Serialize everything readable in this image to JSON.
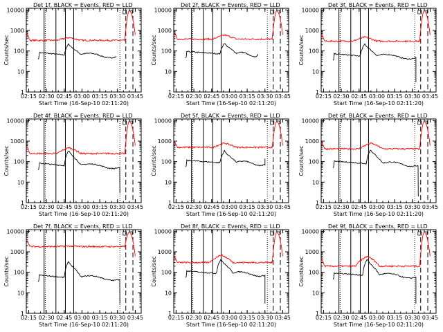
{
  "common": {
    "xlabel": "Start Time (16-Sep-10 02:11:20)",
    "ylabel": "Counts/sec",
    "x_ticks": [
      "02:15",
      "02:30",
      "02:45",
      "03:00",
      "03:15",
      "03:30",
      "03:45"
    ],
    "y_ticks": [
      "1",
      "10",
      "100",
      "1000",
      "10000"
    ],
    "y_scale": "log",
    "ylim": [
      1,
      10000
    ],
    "series_colors": {
      "events": "#000000",
      "lld": "#ff0000"
    },
    "solid_markers": [
      "02:28",
      "02:38",
      "02:46",
      "02:53"
    ],
    "dotted_markers": [
      "02:29",
      "03:32"
    ],
    "dashed_markers": [
      "03:37",
      "03:43"
    ]
  },
  "chart_data": [
    {
      "type": "line",
      "title": "Det 1f, BLACK = Events, RED = LLD",
      "events": {
        "start": "02:23",
        "base": 80,
        "peak_at": "02:49",
        "peak": 230,
        "end": "03:29",
        "end_value": 55
      },
      "lld": {
        "base": 330,
        "peak": 450,
        "flare_max": 9000
      }
    },
    {
      "type": "line",
      "title": "Det 2f, BLACK = Events, RED = LLD",
      "events": {
        "start": "02:23",
        "base": 90,
        "peak_at": "02:56",
        "peak": 250,
        "end": "03:24",
        "end_value": 70
      },
      "lld": {
        "base": 380,
        "peak": 600,
        "flare_max": 9000
      }
    },
    {
      "type": "line",
      "title": "Det 3f, BLACK = Events, RED = LLD",
      "events": {
        "start": "02:23",
        "base": 70,
        "peak_at": "02:50",
        "peak": 230,
        "end": "03:33",
        "end_value": 3
      },
      "lld": {
        "base": 300,
        "peak": 480,
        "flare_max": 9000
      }
    },
    {
      "type": "line",
      "title": "Det 4f, BLACK = Events, RED = LLD",
      "events": {
        "start": "02:23",
        "base": 80,
        "peak_at": "02:49",
        "peak": 350,
        "end": "03:32",
        "end_value": 3
      },
      "lld": {
        "base": 250,
        "peak": 480,
        "flare_max": 9000
      }
    },
    {
      "type": "line",
      "title": "Det 5f, BLACK = Events, RED = LLD",
      "events": {
        "start": "02:23",
        "base": 110,
        "peak_at": "02:56",
        "peak": 350,
        "end": "03:30",
        "end_value": 140
      },
      "lld": {
        "base": 500,
        "peak": 800,
        "flare_max": 9000
      }
    },
    {
      "type": "line",
      "title": "Det 6f, BLACK = Events, RED = LLD",
      "events": {
        "start": "02:23",
        "base": 100,
        "peak_at": "02:55",
        "peak": 400,
        "end": "03:35",
        "end_value": 2
      },
      "lld": {
        "base": 420,
        "peak": 800,
        "flare_max": 9000
      }
    },
    {
      "type": "line",
      "title": "Det 7f, BLACK = Events, RED = LLD",
      "events": {
        "start": "02:23",
        "base": 70,
        "peak_at": "02:49",
        "peak": 350,
        "end": "03:32",
        "end_value": 3
      },
      "lld": {
        "base": 1800,
        "peak": 1900,
        "flare_max": 9000
      }
    },
    {
      "type": "line",
      "title": "Det 8f, BLACK = Events, RED = LLD",
      "events": {
        "start": "02:23",
        "base": 110,
        "peak_at": "02:53",
        "peak": 450,
        "end": "03:30",
        "end_value": 3
      },
      "lld": {
        "base": 300,
        "peak": 700,
        "flare_max": 9000
      }
    },
    {
      "type": "line",
      "title": "Det 9f, BLACK = Events, RED = LLD",
      "events": {
        "start": "02:23",
        "base": 90,
        "peak_at": "02:52",
        "peak": 450,
        "end": "03:33",
        "end_value": 3
      },
      "lld": {
        "base": 200,
        "peak": 600,
        "flare_max": 9000
      }
    }
  ]
}
